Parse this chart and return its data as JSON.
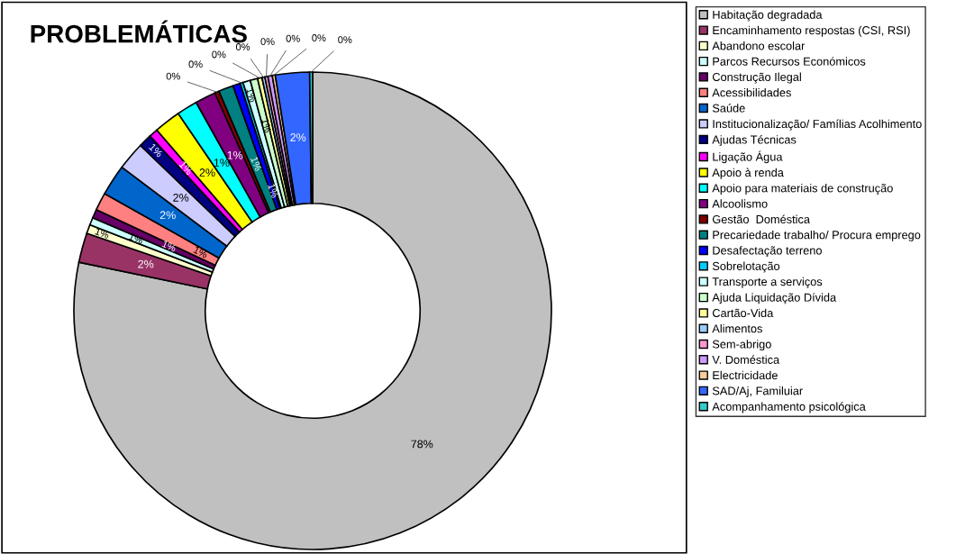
{
  "chart_data": {
    "type": "donut",
    "title": "PROBLEMÁTICAS",
    "categories": [
      "Habitação degradada",
      "Encaminhamento respostas (CSI, RSI)",
      "Abandono escolar",
      "Parcos Recursos Económicos",
      "Construção Ilegal",
      "Acessibilidades",
      "Saúde",
      "Institucionalização/ Famílias Acolhimento",
      "Ajudas Técnicas",
      "Ligação Água",
      "Apoio à renda",
      "Apoio para materiais de construção",
      "Alcoolismo",
      "Gestão  Doméstica",
      "Precariedade trabalho/ Procura emprego",
      "Desafectação terreno",
      "Sobrelotação",
      "Transporte a serviços",
      "Ajuda Liquidação Dívida",
      "Cartão-Vida",
      "Alimentos",
      "Sem-abrigo",
      "V. Doméstica",
      "Electricidade",
      "SAD/Aj, Familuiar",
      "Acompanhamento psicológica"
    ],
    "values": [
      78.1,
      2.0,
      0.6,
      0.5,
      0.6,
      1.2,
      2.1,
      1.9,
      0.9,
      0.6,
      1.8,
      1.4,
      1.4,
      0.3,
      1.0,
      0.5,
      0.2,
      0.5,
      0.5,
      0.3,
      0.2,
      0.2,
      0.3,
      0.2,
      2.3,
      0.2
    ],
    "value_labels": [
      "78%",
      "2%",
      "1%",
      "1%",
      "1%",
      "1%",
      "2%",
      "2%",
      "1%",
      "1%",
      "2%",
      "1%",
      "1%",
      "0%",
      "1%",
      "1%",
      "0%",
      "1%",
      "1%",
      "0%",
      "0%",
      "0%",
      "0%",
      "0%",
      "2%",
      "0%"
    ],
    "colors": [
      "#c0c0c0",
      "#993366",
      "#ffffcc",
      "#ccffff",
      "#660066",
      "#ff8080",
      "#0066cc",
      "#ccccff",
      "#000080",
      "#ff00ff",
      "#ffff00",
      "#00ffff",
      "#800080",
      "#800000",
      "#008080",
      "#0000ff",
      "#00ccff",
      "#ccffff",
      "#ccffcc",
      "#ffff99",
      "#99ccff",
      "#ff99cc",
      "#cc99ff",
      "#ffcc99",
      "#3366ff",
      "#33cccc"
    ],
    "legend": "right"
  }
}
